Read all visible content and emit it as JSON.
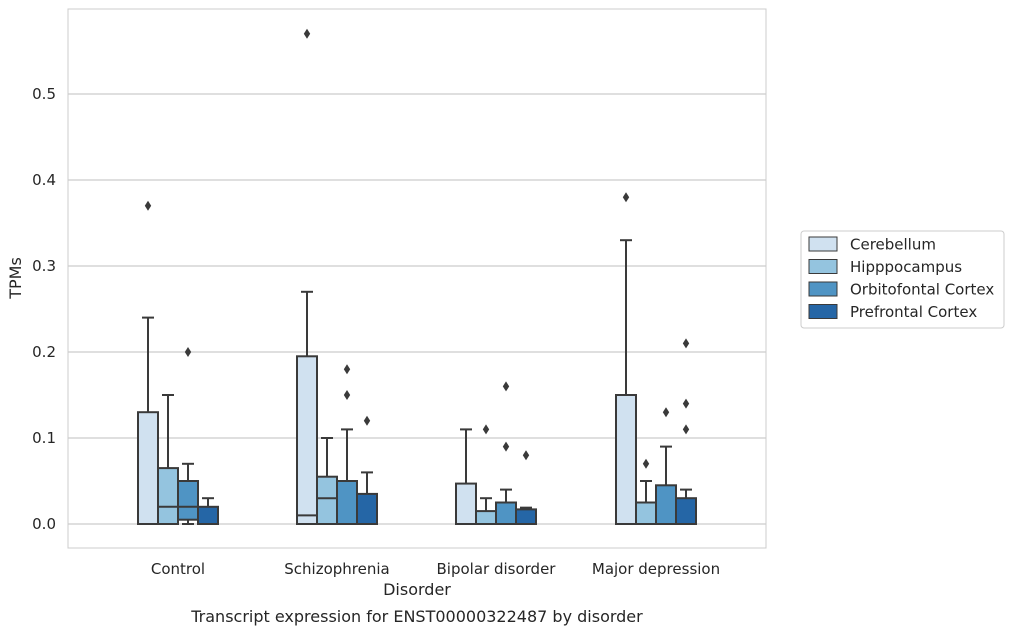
{
  "colors": {
    "cerebellum": "#d0e1f0",
    "hippocampus": "#94c4df",
    "orbitofrontal": "#4f94c4",
    "prefrontal": "#2566a6",
    "box_edge": "#3a3a3a",
    "grid": "#cccccc",
    "frame": "#cccccc"
  },
  "chart_data": {
    "type": "box",
    "title": "Transcript expression for ENST00000322487 by disorder",
    "xlabel": "Disorder",
    "ylabel": "TPMs",
    "ylim": [
      -0.028,
      0.6
    ],
    "yticks": [
      0.0,
      0.1,
      0.2,
      0.3,
      0.4,
      0.5
    ],
    "ytick_labels": [
      "0.0",
      "0.1",
      "0.2",
      "0.3",
      "0.4",
      "0.5"
    ],
    "grid": "horizontal",
    "legend_position": "right",
    "categories": [
      "Control",
      "Schizophrenia",
      "Bipolar disorder",
      "Major depression"
    ],
    "series": [
      {
        "name": "Cerebellum",
        "color_key": "cerebellum",
        "boxes": [
          {
            "q1": 0.0,
            "median": 0.0,
            "q3": 0.13,
            "whisker_low": 0.0,
            "whisker_high": 0.24,
            "outliers": [
              0.37
            ]
          },
          {
            "q1": 0.0,
            "median": 0.01,
            "q3": 0.195,
            "whisker_low": 0.0,
            "whisker_high": 0.27,
            "outliers": [
              0.57
            ]
          },
          {
            "q1": 0.0,
            "median": 0.0,
            "q3": 0.047,
            "whisker_low": 0.0,
            "whisker_high": 0.11,
            "outliers": []
          },
          {
            "q1": 0.0,
            "median": 0.0,
            "q3": 0.15,
            "whisker_low": 0.0,
            "whisker_high": 0.33,
            "outliers": [
              0.38
            ]
          }
        ]
      },
      {
        "name": "Hipppocampus",
        "color_key": "hippocampus",
        "boxes": [
          {
            "q1": 0.0,
            "median": 0.02,
            "q3": 0.065,
            "whisker_low": 0.0,
            "whisker_high": 0.15,
            "outliers": []
          },
          {
            "q1": 0.0,
            "median": 0.03,
            "q3": 0.055,
            "whisker_low": 0.0,
            "whisker_high": 0.1,
            "outliers": []
          },
          {
            "q1": 0.0,
            "median": 0.0,
            "q3": 0.015,
            "whisker_low": 0.0,
            "whisker_high": 0.03,
            "outliers": [
              0.11
            ]
          },
          {
            "q1": 0.0,
            "median": 0.0,
            "q3": 0.025,
            "whisker_low": 0.0,
            "whisker_high": 0.05,
            "outliers": [
              0.07
            ]
          }
        ]
      },
      {
        "name": "Orbitofontal Cortex",
        "color_key": "orbitofrontal",
        "boxes": [
          {
            "q1": 0.005,
            "median": 0.02,
            "q3": 0.05,
            "whisker_low": 0.0,
            "whisker_high": 0.07,
            "outliers": [
              0.2
            ]
          },
          {
            "q1": 0.0,
            "median": 0.0,
            "q3": 0.05,
            "whisker_low": 0.0,
            "whisker_high": 0.11,
            "outliers": [
              0.15,
              0.18
            ]
          },
          {
            "q1": 0.0,
            "median": 0.0,
            "q3": 0.025,
            "whisker_low": 0.0,
            "whisker_high": 0.04,
            "outliers": [
              0.09,
              0.16
            ]
          },
          {
            "q1": 0.0,
            "median": 0.0,
            "q3": 0.045,
            "whisker_low": 0.0,
            "whisker_high": 0.09,
            "outliers": [
              0.13
            ]
          }
        ]
      },
      {
        "name": "Prefrontal Cortex",
        "color_key": "prefrontal",
        "boxes": [
          {
            "q1": 0.0,
            "median": 0.0,
            "q3": 0.02,
            "whisker_low": 0.0,
            "whisker_high": 0.03,
            "outliers": []
          },
          {
            "q1": 0.0,
            "median": 0.0,
            "q3": 0.035,
            "whisker_low": 0.0,
            "whisker_high": 0.06,
            "outliers": [
              0.12
            ]
          },
          {
            "q1": 0.0,
            "median": 0.0,
            "q3": 0.017,
            "whisker_low": 0.0,
            "whisker_high": 0.019,
            "outliers": [
              0.08
            ]
          },
          {
            "q1": 0.0,
            "median": 0.0,
            "q3": 0.03,
            "whisker_low": 0.0,
            "whisker_high": 0.04,
            "outliers": [
              0.11,
              0.14,
              0.21
            ]
          }
        ]
      }
    ]
  }
}
